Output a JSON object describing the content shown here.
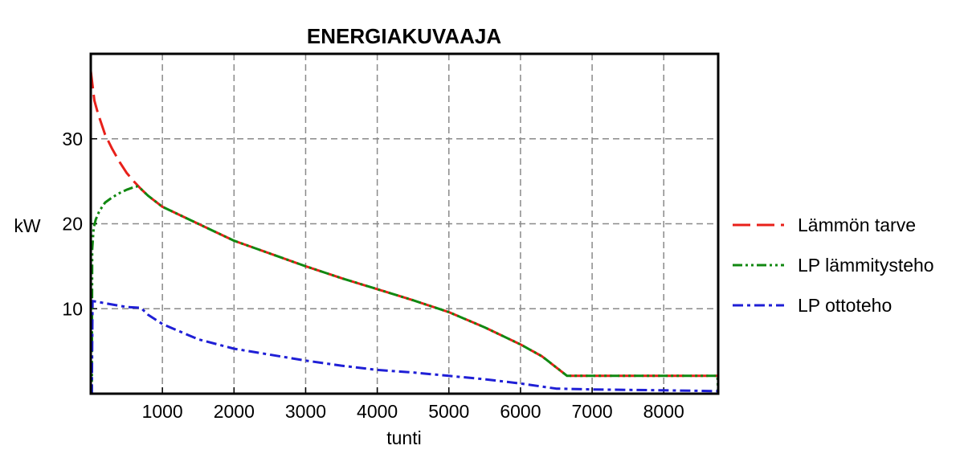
{
  "chart_data": {
    "type": "line",
    "title": "ENERGIAKUVAAJA",
    "xlabel": "tunti",
    "ylabel": "kW",
    "xlim": [
      0,
      8760
    ],
    "ylim": [
      0,
      40
    ],
    "xticks": [
      1000,
      2000,
      3000,
      4000,
      5000,
      6000,
      7000,
      8000
    ],
    "yticks": [
      10,
      20,
      30
    ],
    "grid": true,
    "legend_position": "right",
    "series": [
      {
        "name": "Lämmön tarve",
        "color": "#e8201a",
        "dash": "long-dash",
        "points": [
          [
            0,
            38
          ],
          [
            50,
            34.5
          ],
          [
            100,
            33
          ],
          [
            200,
            30.5
          ],
          [
            300,
            28.8
          ],
          [
            400,
            27.3
          ],
          [
            500,
            26
          ],
          [
            600,
            25
          ],
          [
            700,
            24.1
          ],
          [
            800,
            23.3
          ],
          [
            1000,
            22
          ],
          [
            1500,
            20
          ],
          [
            2000,
            18
          ],
          [
            2500,
            16.5
          ],
          [
            3000,
            15
          ],
          [
            3500,
            13.6
          ],
          [
            4000,
            12.3
          ],
          [
            4500,
            11
          ],
          [
            5000,
            9.6
          ],
          [
            5500,
            7.8
          ],
          [
            6000,
            5.8
          ],
          [
            6300,
            4.4
          ],
          [
            6650,
            2.1
          ],
          [
            8760,
            2.1
          ]
        ]
      },
      {
        "name": "LP lämmitysteho",
        "color": "#118811",
        "dash": "dash-dot-dot",
        "points": [
          [
            0,
            0
          ],
          [
            15,
            0
          ],
          [
            20,
            17
          ],
          [
            40,
            19.5
          ],
          [
            70,
            20.5
          ],
          [
            120,
            21.5
          ],
          [
            200,
            22.5
          ],
          [
            300,
            23.1
          ],
          [
            400,
            23.6
          ],
          [
            500,
            24
          ],
          [
            600,
            24.3
          ],
          [
            650,
            24.4
          ],
          [
            700,
            24.1
          ],
          [
            800,
            23.3
          ],
          [
            1000,
            22
          ],
          [
            1500,
            20
          ],
          [
            2000,
            18
          ],
          [
            2500,
            16.5
          ],
          [
            3000,
            15
          ],
          [
            3500,
            13.6
          ],
          [
            4000,
            12.3
          ],
          [
            4500,
            11
          ],
          [
            5000,
            9.6
          ],
          [
            5500,
            7.8
          ],
          [
            6000,
            5.8
          ],
          [
            6300,
            4.4
          ],
          [
            6650,
            2.1
          ],
          [
            8750,
            2.1
          ],
          [
            8760,
            0
          ]
        ]
      },
      {
        "name": "LP ottoteho",
        "color": "#1f1fd6",
        "dash": "dash-dot",
        "points": [
          [
            0,
            0
          ],
          [
            15,
            0
          ],
          [
            25,
            10.9
          ],
          [
            100,
            10.8
          ],
          [
            300,
            10.5
          ],
          [
            500,
            10.2
          ],
          [
            700,
            10.1
          ],
          [
            800,
            9.3
          ],
          [
            1000,
            8.2
          ],
          [
            1500,
            6.4
          ],
          [
            2000,
            5.3
          ],
          [
            2500,
            4.6
          ],
          [
            3000,
            3.9
          ],
          [
            3500,
            3.3
          ],
          [
            4000,
            2.8
          ],
          [
            4500,
            2.5
          ],
          [
            5000,
            2.1
          ],
          [
            5500,
            1.7
          ],
          [
            6000,
            1.2
          ],
          [
            6500,
            0.6
          ],
          [
            7000,
            0.5
          ],
          [
            8000,
            0.4
          ],
          [
            8760,
            0.3
          ]
        ]
      }
    ]
  }
}
